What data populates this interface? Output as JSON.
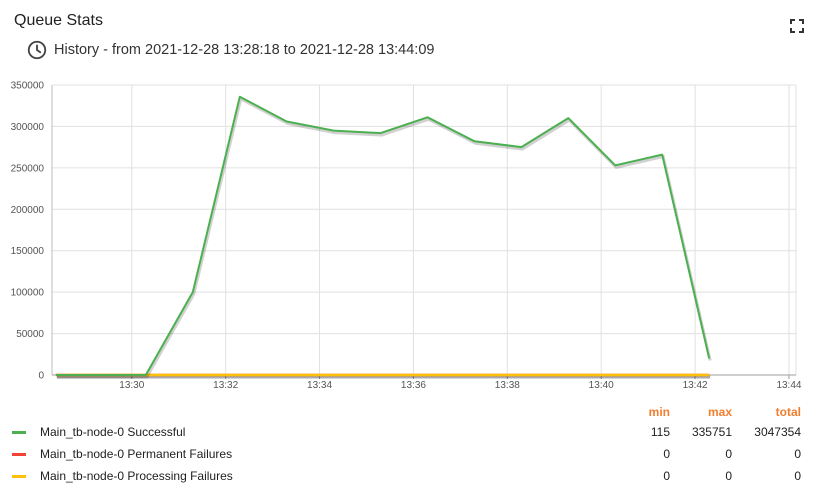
{
  "widget": {
    "title": "Queue Stats",
    "subtitle": "History - from 2021-12-28 13:28:18 to 2021-12-28 13:44:09",
    "fullscreen_icon": "fullscreen-icon",
    "clock_icon": "clock-icon"
  },
  "chart_data": {
    "type": "line",
    "title": "",
    "xlabel": "",
    "ylabel": "",
    "xlim": [
      "13:28:18",
      "13:44:09"
    ],
    "ylim": [
      0,
      350000
    ],
    "grid": true,
    "x_ticks": [
      "13:30",
      "13:32",
      "13:34",
      "13:36",
      "13:38",
      "13:40",
      "13:42",
      "13:44"
    ],
    "y_ticks": [
      "0",
      "50000",
      "100000",
      "150000",
      "200000",
      "250000",
      "300000",
      "350000"
    ],
    "series": [
      {
        "name": "Main_tb-node-0 Successful",
        "color": "#4caf50",
        "points": [
          [
            "13:28:23",
            0
          ],
          [
            "13:29:18",
            0
          ],
          [
            "13:30:18",
            115
          ],
          [
            "13:31:18",
            100000
          ],
          [
            "13:32:18",
            335751
          ],
          [
            "13:33:18",
            306000
          ],
          [
            "13:34:18",
            295000
          ],
          [
            "13:35:18",
            292000
          ],
          [
            "13:36:18",
            311000
          ],
          [
            "13:37:18",
            282000
          ],
          [
            "13:38:18",
            275000
          ],
          [
            "13:39:18",
            310000
          ],
          [
            "13:40:18",
            253000
          ],
          [
            "13:41:18",
            266000
          ],
          [
            "13:42:18",
            20000
          ]
        ]
      },
      {
        "name": "Main_tb-node-0 Permanent Failures",
        "color": "#f44336",
        "points": [
          [
            "13:28:23",
            0
          ],
          [
            "13:42:18",
            0
          ]
        ]
      },
      {
        "name": "Main_tb-node-0 Processing Failures",
        "color": "#ffc107",
        "points": [
          [
            "13:28:23",
            0
          ],
          [
            "13:42:18",
            0
          ]
        ]
      }
    ]
  },
  "legend": {
    "headers": {
      "min": "min",
      "max": "max",
      "total": "total"
    },
    "rows": [
      {
        "label": "Main_tb-node-0 Successful",
        "color": "#4caf50",
        "min": "115",
        "max": "335751",
        "total": "3047354"
      },
      {
        "label": "Main_tb-node-0 Permanent Failures",
        "color": "#f44336",
        "min": "0",
        "max": "0",
        "total": "0"
      },
      {
        "label": "Main_tb-node-0 Processing Failures",
        "color": "#ffc107",
        "min": "0",
        "max": "0",
        "total": "0"
      }
    ]
  }
}
